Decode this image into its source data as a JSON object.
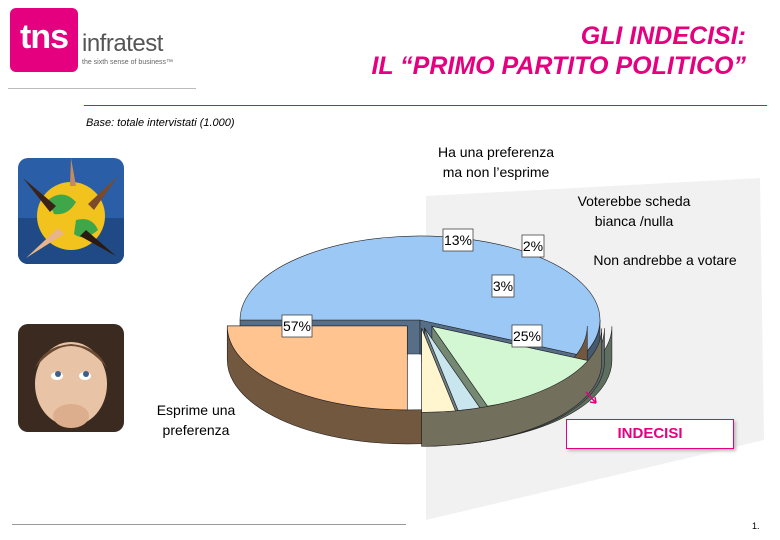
{
  "header": {
    "logo_mark": "tns",
    "logo_name": "infratest",
    "logo_tagline": "the sixth sense of business™",
    "title_line1": "GLI INDECISI:",
    "title_line2": "IL “PRIMO PARTITO POLITICO”"
  },
  "base_note": "Base: totale intervistati (1.000)",
  "callout": "INDECISI",
  "page_number": "1.",
  "colors": {
    "accent": "#e4007e",
    "slice_esprime": "#9cc8f6",
    "slice_preferenza": "#d2f7d2",
    "slice_bianca": "#c9e6ef",
    "slice_non_voto": "#fff6cf",
    "slice_indecisi": "#ffc48f"
  },
  "chart_data": {
    "type": "pie",
    "style": "3d exploded",
    "series": [
      {
        "label": "Esprime una preferenza",
        "value": 57,
        "value_label": "57%"
      },
      {
        "label": "Ha una preferenza ma non l’esprime",
        "value": 13,
        "value_label": "13%"
      },
      {
        "label": "Voterebbe scheda bianca /nulla",
        "value": 2,
        "value_label": "2%"
      },
      {
        "label": "Non andrebbe a votare",
        "value": 3,
        "value_label": "3%"
      },
      {
        "label": "",
        "value": 25,
        "value_label": "25%"
      }
    ],
    "annotations": [
      {
        "text": "INDECISI",
        "refers_to": "exploded slices"
      }
    ]
  }
}
